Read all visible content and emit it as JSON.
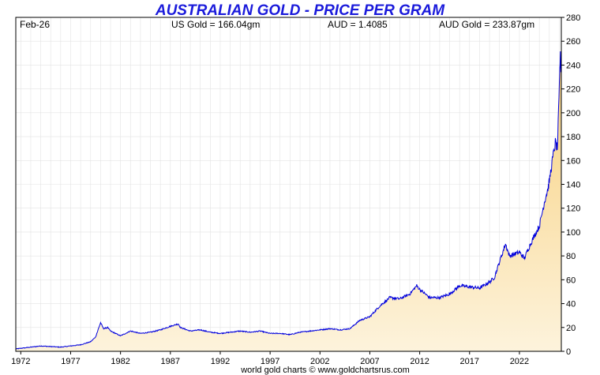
{
  "header": {
    "title": "AUSTRALIAN GOLD - PRICE PER GRAM",
    "date_label": "Feb-26",
    "us_gold": "US Gold = 166.04gm",
    "aud_rate": "AUD = 1.4085",
    "aud_gold": "AUD Gold = 233.87gm"
  },
  "footer": {
    "credit": "world gold charts © www.goldchartsrus.com"
  },
  "colors": {
    "title": "#1a1adb",
    "line": "#0000dd",
    "fill_top": "#f7cf7a",
    "fill_bottom": "#fdf3dc",
    "grid": "#e3e3e3"
  },
  "chart_data": {
    "type": "area",
    "title": "AUSTRALIAN GOLD - PRICE PER GRAM",
    "xlabel": "",
    "ylabel": "",
    "xlim": [
      1971.5,
      2026.2
    ],
    "ylim": [
      0,
      280
    ],
    "x_ticks": [
      1972,
      1977,
      1982,
      1987,
      1992,
      1997,
      2002,
      2007,
      2012,
      2017,
      2022
    ],
    "y_ticks": [
      0,
      20,
      40,
      60,
      80,
      100,
      120,
      140,
      160,
      180,
      200,
      220,
      240,
      260,
      280
    ],
    "y_axis_side": "right",
    "grid": true,
    "series": [
      {
        "x": [
          1971.5,
          1972,
          1973,
          1974,
          1975,
          1976,
          1977,
          1978,
          1979,
          1979.5,
          1980.0,
          1980.3,
          1980.7,
          1981,
          1982,
          1983,
          1984,
          1985,
          1986,
          1987,
          1987.8,
          1988,
          1989,
          1990,
          1991,
          1992,
          1993,
          1994,
          1995,
          1996,
          1997,
          1998,
          1999,
          2000,
          2001,
          2002,
          2003,
          2004,
          2005,
          2006,
          2007,
          2008,
          2009,
          2010,
          2011,
          2011.7,
          2012,
          2013,
          2014,
          2015,
          2016,
          2017,
          2018,
          2019,
          2019.5,
          2020,
          2020.6,
          2021,
          2022,
          2022.5,
          2023,
          2023.5,
          2024,
          2024.5,
          2024.9,
          2025,
          2025.3,
          2025.6,
          2025.8,
          2026.0,
          2026.1,
          2026.15
        ],
        "y": [
          2,
          2.5,
          3.5,
          4.5,
          4,
          3.5,
          4.5,
          5.5,
          8,
          12,
          24,
          19,
          20,
          17,
          13,
          17,
          15,
          16,
          18,
          21,
          23,
          20,
          17,
          18,
          16,
          15,
          16,
          17,
          16,
          17,
          15,
          15,
          14,
          16,
          17,
          18,
          19,
          18,
          19,
          26,
          29,
          38,
          45,
          44,
          48,
          55,
          52,
          45,
          45,
          48,
          55,
          54,
          53,
          58,
          62,
          75,
          90,
          80,
          83,
          78,
          88,
          97,
          105,
          125,
          138,
          143,
          160,
          175,
          170,
          220,
          250,
          234
        ]
      }
    ]
  }
}
